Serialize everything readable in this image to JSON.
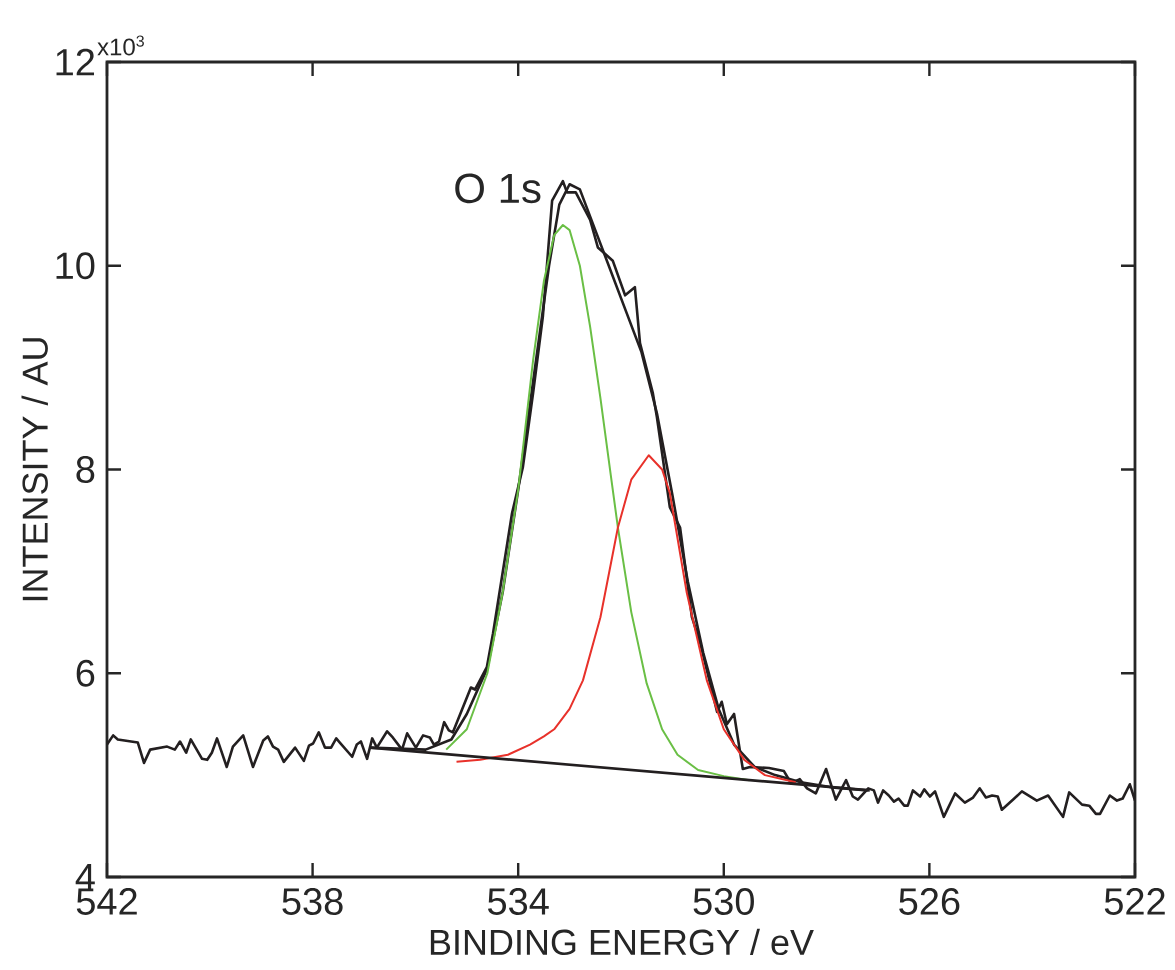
{
  "chart_data": {
    "type": "line",
    "xlabel": "BINDING ENERGY / eV",
    "ylabel": "INTENSITY / AU",
    "annotations": [
      "O 1s",
      "x10$^{3}$"
    ],
    "xlim": [
      542,
      522
    ],
    "ylim": [
      4,
      12
    ],
    "xticks": [
      542,
      538,
      534,
      530,
      526,
      522
    ],
    "yticks": [
      4,
      6,
      8,
      10,
      12
    ],
    "grid": false,
    "marker": "none",
    "line_style": "solid",
    "series": [
      {
        "color": "#231f20",
        "x": [
          542.0,
          541.88,
          541.79,
          541.4,
          541.28,
          541.16,
          540.83,
          540.68,
          540.58,
          540.46,
          540.37,
          540.15,
          540.05,
          539.96,
          539.86,
          539.67,
          539.55,
          539.35,
          539.16,
          538.96,
          538.87,
          538.77,
          538.67,
          538.56,
          538.34,
          538.17,
          538.07,
          537.99,
          537.88,
          537.76,
          537.64,
          537.54,
          537.47,
          537.23,
          537.14,
          537.06,
          536.94,
          536.84,
          536.75,
          536.55,
          536.44,
          536.26,
          536.16,
          535.99,
          535.85,
          535.72,
          535.64,
          535.54,
          535.44,
          535.35,
          535.27,
          534.92,
          534.84,
          534.61,
          534.49,
          534.12,
          533.91,
          533.71,
          533.52,
          533.34,
          533.13,
          533.05,
          532.88,
          532.6,
          532.45,
          532.16,
          531.92,
          531.73,
          531.63,
          531.38,
          531.3,
          531.05,
          530.85,
          530.62,
          530.46,
          530.13,
          530.04,
          529.94,
          529.8,
          529.63,
          529.49,
          529.12,
          528.83,
          528.69,
          528.52,
          528.38,
          528.21,
          528.01,
          527.82,
          527.62,
          527.49,
          527.39,
          527.19,
          527.08,
          527.0,
          526.9,
          526.79,
          526.69,
          526.6,
          526.49,
          526.42,
          526.32,
          526.18,
          526.1,
          525.99,
          525.89,
          525.72,
          525.5,
          525.31,
          525.15,
          525.02,
          524.9,
          524.78,
          524.67,
          524.59,
          524.37,
          524.2,
          523.91,
          523.69,
          523.4,
          523.28,
          523.03,
          522.89,
          522.76,
          522.68,
          522.49,
          522.35,
          522.24,
          522.1,
          522.0
        ],
        "values": [
          5.3,
          5.39,
          5.35,
          5.32,
          5.12,
          5.25,
          5.28,
          5.25,
          5.33,
          5.22,
          5.35,
          5.16,
          5.15,
          5.22,
          5.36,
          5.08,
          5.28,
          5.39,
          5.08,
          5.34,
          5.38,
          5.28,
          5.25,
          5.13,
          5.27,
          5.14,
          5.29,
          5.31,
          5.42,
          5.27,
          5.27,
          5.36,
          5.32,
          5.18,
          5.3,
          5.33,
          5.16,
          5.36,
          5.27,
          5.43,
          5.37,
          5.25,
          5.41,
          5.27,
          5.39,
          5.37,
          5.3,
          5.33,
          5.52,
          5.44,
          5.42,
          5.86,
          5.84,
          6.06,
          6.39,
          7.57,
          8.02,
          8.75,
          9.5,
          10.64,
          10.83,
          10.72,
          10.72,
          10.45,
          10.18,
          10.05,
          9.71,
          9.79,
          9.24,
          8.75,
          8.51,
          7.63,
          7.43,
          6.55,
          6.3,
          5.62,
          5.72,
          5.5,
          5.6,
          5.06,
          5.08,
          5.07,
          5.04,
          4.92,
          4.96,
          4.87,
          4.82,
          5.06,
          4.76,
          4.95,
          4.79,
          4.76,
          4.87,
          4.85,
          4.73,
          4.85,
          4.8,
          4.74,
          4.77,
          4.7,
          4.7,
          4.85,
          4.79,
          4.86,
          4.79,
          4.84,
          4.59,
          4.82,
          4.73,
          4.78,
          4.87,
          4.78,
          4.8,
          4.79,
          4.66,
          4.76,
          4.84,
          4.75,
          4.8,
          4.59,
          4.83,
          4.71,
          4.7,
          4.62,
          4.62,
          4.8,
          4.75,
          4.77,
          4.91,
          4.75
        ]
      },
      {
        "color": "#231f20",
        "x": [
          536.9,
          535.8,
          535.3,
          535.0,
          534.6,
          534.3,
          534.0,
          533.7,
          533.4,
          533.2,
          533.0,
          532.8,
          532.5,
          532.2,
          531.9,
          531.6,
          531.3,
          531.0,
          530.7,
          530.4,
          530.1,
          529.8,
          529.4,
          529.0,
          528.5,
          527.9,
          527.2
        ],
        "values": [
          5.27,
          5.25,
          5.35,
          5.6,
          6.05,
          6.8,
          7.8,
          8.9,
          10.0,
          10.6,
          10.8,
          10.75,
          10.35,
          9.95,
          9.55,
          9.15,
          8.55,
          7.75,
          6.9,
          6.2,
          5.65,
          5.3,
          5.08,
          5.0,
          4.93,
          4.88,
          4.85
        ]
      },
      {
        "color": "#6abf45",
        "x": [
          535.4,
          535.0,
          534.6,
          534.3,
          534.0,
          533.71,
          533.5,
          533.3,
          533.13,
          533.0,
          532.8,
          532.6,
          532.4,
          532.2,
          532.06,
          531.8,
          531.5,
          531.2,
          530.9,
          530.5,
          530.0,
          529.5
        ],
        "values": [
          5.25,
          5.45,
          6.0,
          6.8,
          7.8,
          9.07,
          9.85,
          10.3,
          10.4,
          10.35,
          10.0,
          9.4,
          8.7,
          7.95,
          7.43,
          6.6,
          5.9,
          5.45,
          5.2,
          5.05,
          4.99,
          4.95
        ]
      },
      {
        "color": "#e8312a",
        "x": [
          535.2,
          534.74,
          534.2,
          533.77,
          533.5,
          533.3,
          533.0,
          532.74,
          532.4,
          532.06,
          531.8,
          531.46,
          531.2,
          531.05,
          530.72,
          530.33,
          530.0,
          529.6,
          529.2,
          528.6
        ],
        "values": [
          5.13,
          5.15,
          5.2,
          5.3,
          5.38,
          5.45,
          5.65,
          5.93,
          6.55,
          7.43,
          7.9,
          8.14,
          8.0,
          7.77,
          6.79,
          5.93,
          5.45,
          5.15,
          5.0,
          4.93
        ]
      },
      {
        "color": "#231f20",
        "x": [
          536.88,
          527.16
        ],
        "values": [
          5.27,
          4.85
        ]
      }
    ]
  }
}
